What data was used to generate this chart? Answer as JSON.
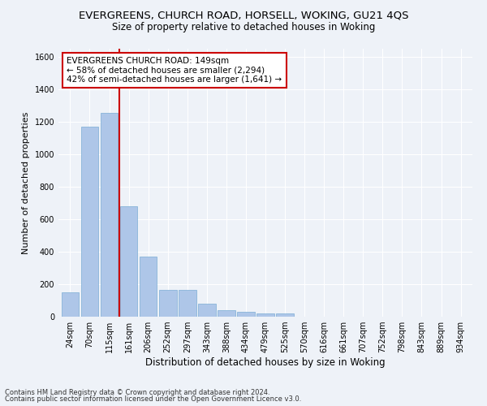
{
  "title": "EVERGREENS, CHURCH ROAD, HORSELL, WOKING, GU21 4QS",
  "subtitle": "Size of property relative to detached houses in Woking",
  "xlabel": "Distribution of detached houses by size in Woking",
  "ylabel": "Number of detached properties",
  "categories": [
    "24sqm",
    "70sqm",
    "115sqm",
    "161sqm",
    "206sqm",
    "252sqm",
    "297sqm",
    "343sqm",
    "388sqm",
    "434sqm",
    "479sqm",
    "525sqm",
    "570sqm",
    "616sqm",
    "661sqm",
    "707sqm",
    "752sqm",
    "798sqm",
    "843sqm",
    "889sqm",
    "934sqm"
  ],
  "values": [
    150,
    1170,
    1255,
    680,
    370,
    165,
    165,
    80,
    40,
    30,
    20,
    20,
    0,
    0,
    0,
    0,
    0,
    0,
    0,
    0,
    0
  ],
  "bar_color": "#aec6e8",
  "bar_edgecolor": "#7aadd4",
  "ylim": [
    0,
    1650
  ],
  "yticks": [
    0,
    200,
    400,
    600,
    800,
    1000,
    1200,
    1400,
    1600
  ],
  "vline_x": 2.5,
  "vline_color": "#cc0000",
  "annotation_text": "EVERGREENS CHURCH ROAD: 149sqm\n← 58% of detached houses are smaller (2,294)\n42% of semi-detached houses are larger (1,641) →",
  "annotation_box_color": "#ffffff",
  "annotation_box_edgecolor": "#cc0000",
  "footer1": "Contains HM Land Registry data © Crown copyright and database right 2024.",
  "footer2": "Contains public sector information licensed under the Open Government Licence v3.0.",
  "bg_color": "#eef2f8",
  "plot_bg_color": "#eef2f8",
  "grid_color": "#ffffff",
  "title_fontsize": 9.5,
  "subtitle_fontsize": 8.5,
  "ylabel_fontsize": 8,
  "xlabel_fontsize": 8.5,
  "tick_fontsize": 7,
  "annotation_fontsize": 7.5,
  "footer_fontsize": 6
}
